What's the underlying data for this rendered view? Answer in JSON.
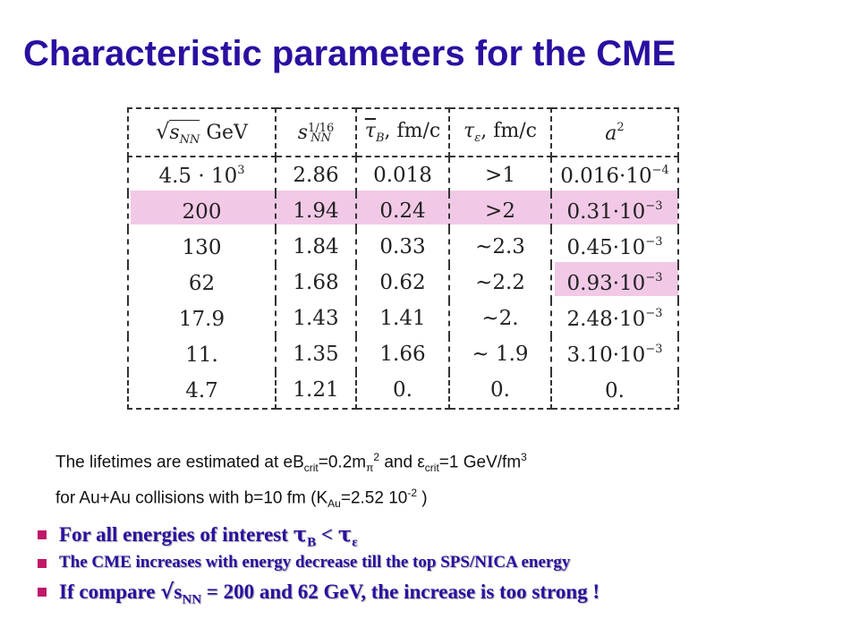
{
  "title": "Characteristic parameters for the CME",
  "table": {
    "headers": {
      "energy": {
        "sqrt": "√",
        "s": "s",
        "sub": "NN",
        "unit": " GeV"
      },
      "scale": {
        "s": "s",
        "sup": "1/16",
        "sub": "NN"
      },
      "tauB": {
        "tau": "τ",
        "sub": "B",
        "unit": ", fm/c"
      },
      "tauE": {
        "tau": "τ",
        "sub": "ε",
        "unit": ", fm/c"
      },
      "a2": {
        "a": "a",
        "sup": "2"
      }
    },
    "rows": [
      {
        "energy": "4.5 · 10",
        "energy_exp": "3",
        "scale": "2.86",
        "tauB": "0.018",
        "tauE": ">1",
        "a2": "0.016·10",
        "a2_exp": "−4"
      },
      {
        "energy": "200",
        "energy_exp": "",
        "scale": "1.94",
        "tauB": "0.24",
        "tauE": ">2",
        "a2": "0.31·10",
        "a2_exp": "−3"
      },
      {
        "energy": "130",
        "energy_exp": "",
        "scale": "1.84",
        "tauB": "0.33",
        "tauE": "~2.3",
        "a2": "0.45·10",
        "a2_exp": "−3"
      },
      {
        "energy": "62",
        "energy_exp": "",
        "scale": "1.68",
        "tauB": "0.62",
        "tauE": "~2.2",
        "a2": "0.93·10",
        "a2_exp": "−3"
      },
      {
        "energy": "17.9",
        "energy_exp": "",
        "scale": "1.43",
        "tauB": "1.41",
        "tauE": "~2.",
        "a2": "2.48·10",
        "a2_exp": "−3"
      },
      {
        "energy": "11.",
        "energy_exp": "",
        "scale": "1.35",
        "tauB": "1.66",
        "tauE": "~ 1.9",
        "a2": "3.10·10",
        "a2_exp": "−3"
      },
      {
        "energy": "4.7",
        "energy_exp": "",
        "scale": "1.21",
        "tauB": "0.",
        "tauE": "0.",
        "a2": "0.",
        "a2_exp": ""
      }
    ],
    "highlight_color": "#f1c9e6"
  },
  "note": {
    "l1_a": "The  lifetimes are estimated at eB",
    "l1_crit": "crit",
    "l1_b": "=0.2m",
    "l1_pi": "π",
    "l1_sq": "2",
    "l1_c": " and ε",
    "l1_crit2": "crit",
    "l1_d": "=1 GeV/fm",
    "l1_cube": "3",
    "l2_a": "for Au+Au collisions with b=10 fm  (K",
    "l2_au": "Au",
    "l2_b": "=2.52 10",
    "l2_exp": "-2",
    "l2_c": " )"
  },
  "bullets": {
    "b1_text": "For all energies of interest  ",
    "b1_tau1": "τ",
    "b1_sub1": "B",
    "b1_lt": "  <  ",
    "b1_tau2": "τ",
    "b1_sub2": "ε",
    "b2_text": "The CME increases with energy decrease till the top SPS/NICA energy",
    "b3_a": "If compare  ",
    "b3_sqrt": "√",
    "b3_s": "s",
    "b3_sub": "NN",
    "b3_b": " = 200 and 62 GeV,  the increase is too strong !"
  },
  "colors": {
    "title": "#2b0fa0",
    "bullet_text": "#2b0fa0",
    "bullet_marker": "#c0186a",
    "highlight": "#f1c9e6"
  }
}
